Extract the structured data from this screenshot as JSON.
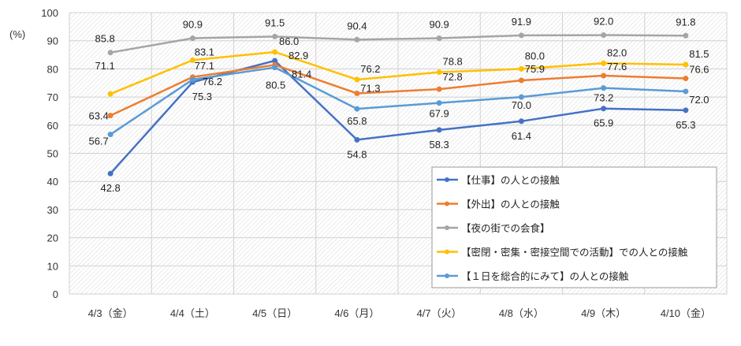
{
  "chart_data": {
    "type": "line",
    "title": "",
    "ylabel": "(%)",
    "xlabel": "",
    "ylim": [
      0,
      100
    ],
    "yticks": [
      0,
      10,
      20,
      30,
      40,
      50,
      60,
      70,
      80,
      90,
      100
    ],
    "grid": true,
    "legend_placement": "bottom-right",
    "categories": [
      "4/3（金）",
      "4/4（土）",
      "4/5（日）",
      "4/6（月）",
      "4/7（火）",
      "4/8（水）",
      "4/9（木）",
      "4/10（金）"
    ],
    "series": [
      {
        "name": "【仕事】の人との接触",
        "color": "#4472C4",
        "values": [
          42.8,
          75.3,
          82.9,
          54.8,
          58.3,
          61.4,
          65.9,
          65.3
        ]
      },
      {
        "name": "【外出】の人との接触",
        "color": "#ED7D31",
        "values": [
          63.4,
          77.1,
          81.4,
          71.3,
          72.8,
          75.9,
          77.6,
          76.6
        ]
      },
      {
        "name": "【夜の街での会食】",
        "color": "#A5A5A5",
        "values": [
          85.8,
          90.9,
          91.5,
          90.4,
          90.9,
          91.9,
          92.0,
          91.8
        ]
      },
      {
        "name": "【密閉・密集・密接空間での活動】での人との接触",
        "color": "#FFC000",
        "values": [
          71.1,
          83.1,
          86.0,
          76.2,
          78.8,
          80.0,
          82.0,
          81.5
        ]
      },
      {
        "name": "【１日を総合的にみて】の人との接触",
        "color": "#5B9BD5",
        "values": [
          56.7,
          76.2,
          80.5,
          65.8,
          67.9,
          70.0,
          73.2,
          72.0
        ]
      }
    ]
  }
}
